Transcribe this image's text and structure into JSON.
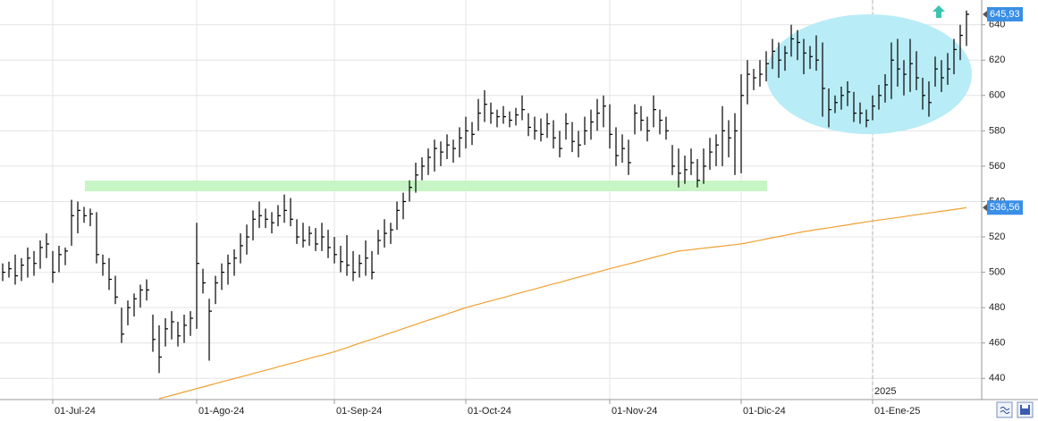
{
  "chart_data": {
    "type": "ohlc",
    "categories": [
      null,
      null,
      null,
      null,
      null,
      null,
      null,
      null,
      "01-Jul-24",
      null,
      null,
      null,
      null,
      null,
      null,
      null,
      null,
      null,
      null,
      null,
      null,
      null,
      null,
      null,
      null,
      null,
      null,
      null,
      null,
      null,
      null,
      "01-Ago-24",
      null,
      null,
      null,
      null,
      null,
      null,
      null,
      null,
      null,
      null,
      null,
      null,
      null,
      null,
      null,
      null,
      null,
      null,
      null,
      null,
      null,
      "01-Sep-24",
      null,
      null,
      null,
      null,
      null,
      null,
      null,
      null,
      null,
      null,
      null,
      null,
      null,
      null,
      null,
      null,
      null,
      null,
      null,
      null,
      "01-Oct-24",
      null,
      null,
      null,
      null,
      null,
      null,
      null,
      null,
      null,
      null,
      null,
      null,
      null,
      null,
      null,
      null,
      null,
      null,
      null,
      null,
      null,
      null,
      "01-Nov-24",
      null,
      null,
      null,
      null,
      null,
      null,
      null,
      null,
      null,
      null,
      null,
      null,
      null,
      null,
      null,
      null,
      null,
      null,
      null,
      null,
      "01-Dic-24",
      null,
      null,
      null,
      null,
      null,
      null,
      null,
      null,
      null,
      null,
      null,
      null,
      null,
      null,
      null,
      null,
      null,
      null,
      null,
      null,
      "01-Ene-25",
      null,
      null,
      null,
      null,
      null,
      null,
      null,
      null,
      null,
      null,
      null,
      null,
      null,
      null,
      null
    ],
    "year_label": "2025",
    "high": [
      505,
      506,
      510,
      508,
      514,
      512,
      518,
      522,
      512,
      515,
      514,
      541,
      540,
      537,
      536,
      534,
      510,
      508,
      498,
      480,
      484,
      488,
      493,
      496,
      476,
      470,
      474,
      478,
      472,
      476,
      478,
      528,
      502,
      485,
      498,
      505,
      510,
      513,
      522,
      527,
      535,
      540,
      536,
      534,
      538,
      544,
      542,
      530,
      528,
      526,
      525,
      528,
      524,
      520,
      515,
      521,
      512,
      510,
      518,
      512,
      524,
      530,
      528,
      540,
      545,
      552,
      562,
      565,
      570,
      575,
      574,
      578,
      575,
      582,
      588,
      585,
      598,
      603,
      596,
      592,
      594,
      591,
      593,
      600,
      590,
      588,
      587,
      590,
      586,
      580,
      590,
      585,
      580,
      588,
      592,
      598,
      600,
      595,
      582,
      578,
      575,
      595,
      594,
      588,
      600,
      592,
      588,
      572,
      570,
      566,
      570,
      564,
      570,
      576,
      578,
      594,
      586,
      590,
      612,
      620,
      615,
      620,
      625,
      632,
      630,
      628,
      640,
      637,
      632,
      628,
      634,
      630,
      604,
      600,
      605,
      608,
      602,
      596,
      592,
      600,
      606,
      612,
      630,
      632,
      620,
      632,
      625,
      610,
      608,
      622,
      620,
      624,
      632,
      640,
      648
    ],
    "low": [
      495,
      497,
      493,
      495,
      497,
      498,
      502,
      508,
      494,
      500,
      504,
      515,
      522,
      528,
      526,
      505,
      498,
      490,
      482,
      460,
      470,
      475,
      480,
      484,
      455,
      443,
      458,
      462,
      458,
      460,
      464,
      468,
      488,
      450,
      482,
      490,
      493,
      498,
      505,
      510,
      518,
      525,
      525,
      522,
      526,
      528,
      526,
      516,
      514,
      515,
      512,
      512,
      508,
      505,
      500,
      498,
      495,
      497,
      498,
      496,
      510,
      514,
      516,
      524,
      530,
      540,
      545,
      552,
      555,
      557,
      560,
      564,
      562,
      565,
      570,
      572,
      580,
      585,
      584,
      582,
      584,
      582,
      583,
      586,
      577,
      575,
      574,
      576,
      570,
      565,
      575,
      568,
      565,
      572,
      575,
      580,
      582,
      570,
      560,
      562,
      555,
      578,
      580,
      574,
      582,
      578,
      575,
      555,
      548,
      550,
      555,
      548,
      550,
      558,
      560,
      560,
      565,
      555,
      556,
      595,
      603,
      605,
      608,
      615,
      610,
      614,
      622,
      620,
      612,
      615,
      614,
      588,
      582,
      590,
      592,
      594,
      585,
      584,
      582,
      586,
      592,
      596,
      598,
      605,
      600,
      602,
      603,
      592,
      588,
      605,
      602,
      606,
      612,
      620,
      628
    ],
    "close": [
      500,
      502,
      498,
      504,
      508,
      505,
      514,
      516,
      500,
      510,
      512,
      532,
      535,
      532,
      533,
      510,
      505,
      496,
      486,
      465,
      480,
      485,
      490,
      490,
      462,
      452,
      468,
      472,
      464,
      470,
      474,
      505,
      494,
      478,
      494,
      500,
      505,
      508,
      515,
      520,
      530,
      532,
      530,
      528,
      532,
      535,
      530,
      520,
      518,
      522,
      516,
      520,
      514,
      510,
      506,
      504,
      500,
      505,
      508,
      500,
      518,
      522,
      524,
      535,
      540,
      548,
      555,
      560,
      565,
      570,
      568,
      572,
      570,
      576,
      580,
      578,
      590,
      595,
      590,
      588,
      588,
      586,
      589,
      592,
      582,
      580,
      578,
      584,
      576,
      570,
      584,
      574,
      572,
      580,
      585,
      590,
      594,
      578,
      566,
      570,
      562,
      590,
      586,
      580,
      592,
      586,
      580,
      560,
      556,
      558,
      562,
      552,
      560,
      568,
      572,
      580,
      576,
      580,
      600,
      612,
      610,
      612,
      618,
      625,
      620,
      624,
      632,
      630,
      624,
      622,
      620,
      604,
      592,
      596,
      600,
      602,
      590,
      590,
      586,
      594,
      600,
      606,
      620,
      615,
      612,
      618,
      610,
      600,
      596,
      615,
      610,
      615,
      626,
      634,
      645.93
    ],
    "color": "#000000",
    "moving_average": {
      "color": "#f0a030",
      "values": [
        null,
        null,
        null,
        null,
        null,
        null,
        null,
        null,
        null,
        null,
        null,
        null,
        null,
        null,
        null,
        null,
        null,
        null,
        null,
        null,
        null,
        null,
        null,
        null,
        null,
        428.5,
        429.4,
        430.4,
        431.3,
        432.3,
        433.2,
        434.2,
        435.1,
        436.1,
        437,
        438,
        438.9,
        439.9,
        440.8,
        441.7,
        442.7,
        443.6,
        444.6,
        445.5,
        446.5,
        447.4,
        448.4,
        449.3,
        450.3,
        451.2,
        452.2,
        453.1,
        454.1,
        455,
        456.2,
        457.4,
        458.6,
        459.8,
        461,
        462.1,
        463.3,
        464.5,
        465.7,
        466.9,
        468.1,
        469.3,
        470.5,
        471.7,
        472.9,
        474,
        475.2,
        476.4,
        477.6,
        478.8,
        480,
        481,
        481.9,
        482.9,
        483.8,
        484.8,
        485.7,
        486.7,
        487.7,
        488.6,
        489.6,
        490.5,
        491.5,
        492.4,
        493.4,
        494.3,
        495.3,
        496.3,
        497.2,
        498.2,
        499.1,
        500.1,
        501,
        502,
        502.9,
        503.8,
        504.7,
        505.6,
        506.5,
        507.5,
        508.4,
        509.3,
        510.2,
        511.1,
        512,
        512.4,
        512.8,
        513.2,
        513.6,
        514,
        514.4,
        514.8,
        515.2,
        515.6,
        516,
        516.7,
        517.4,
        518.1,
        518.8,
        519.5,
        520.2,
        520.9,
        521.6,
        522.3,
        523,
        523.5,
        524.1,
        524.6,
        525.2,
        525.7,
        526.3,
        526.8,
        527.4,
        527.9,
        528.5,
        529,
        529.5,
        530,
        530.5,
        531,
        531.5,
        532,
        532.5,
        533,
        533.5,
        534,
        534.5,
        535,
        535.5,
        536,
        536.56
      ]
    },
    "last_price": {
      "value": 645.93,
      "label": "645,93"
    },
    "last_average": {
      "value": 536.56,
      "label": "536,56"
    },
    "label_color": "#3a8ee6",
    "ylim": [
      428,
      654
    ],
    "yticks": [
      440,
      460,
      480,
      500,
      520,
      540,
      560,
      580,
      600,
      620,
      640
    ],
    "grid": true
  }
}
